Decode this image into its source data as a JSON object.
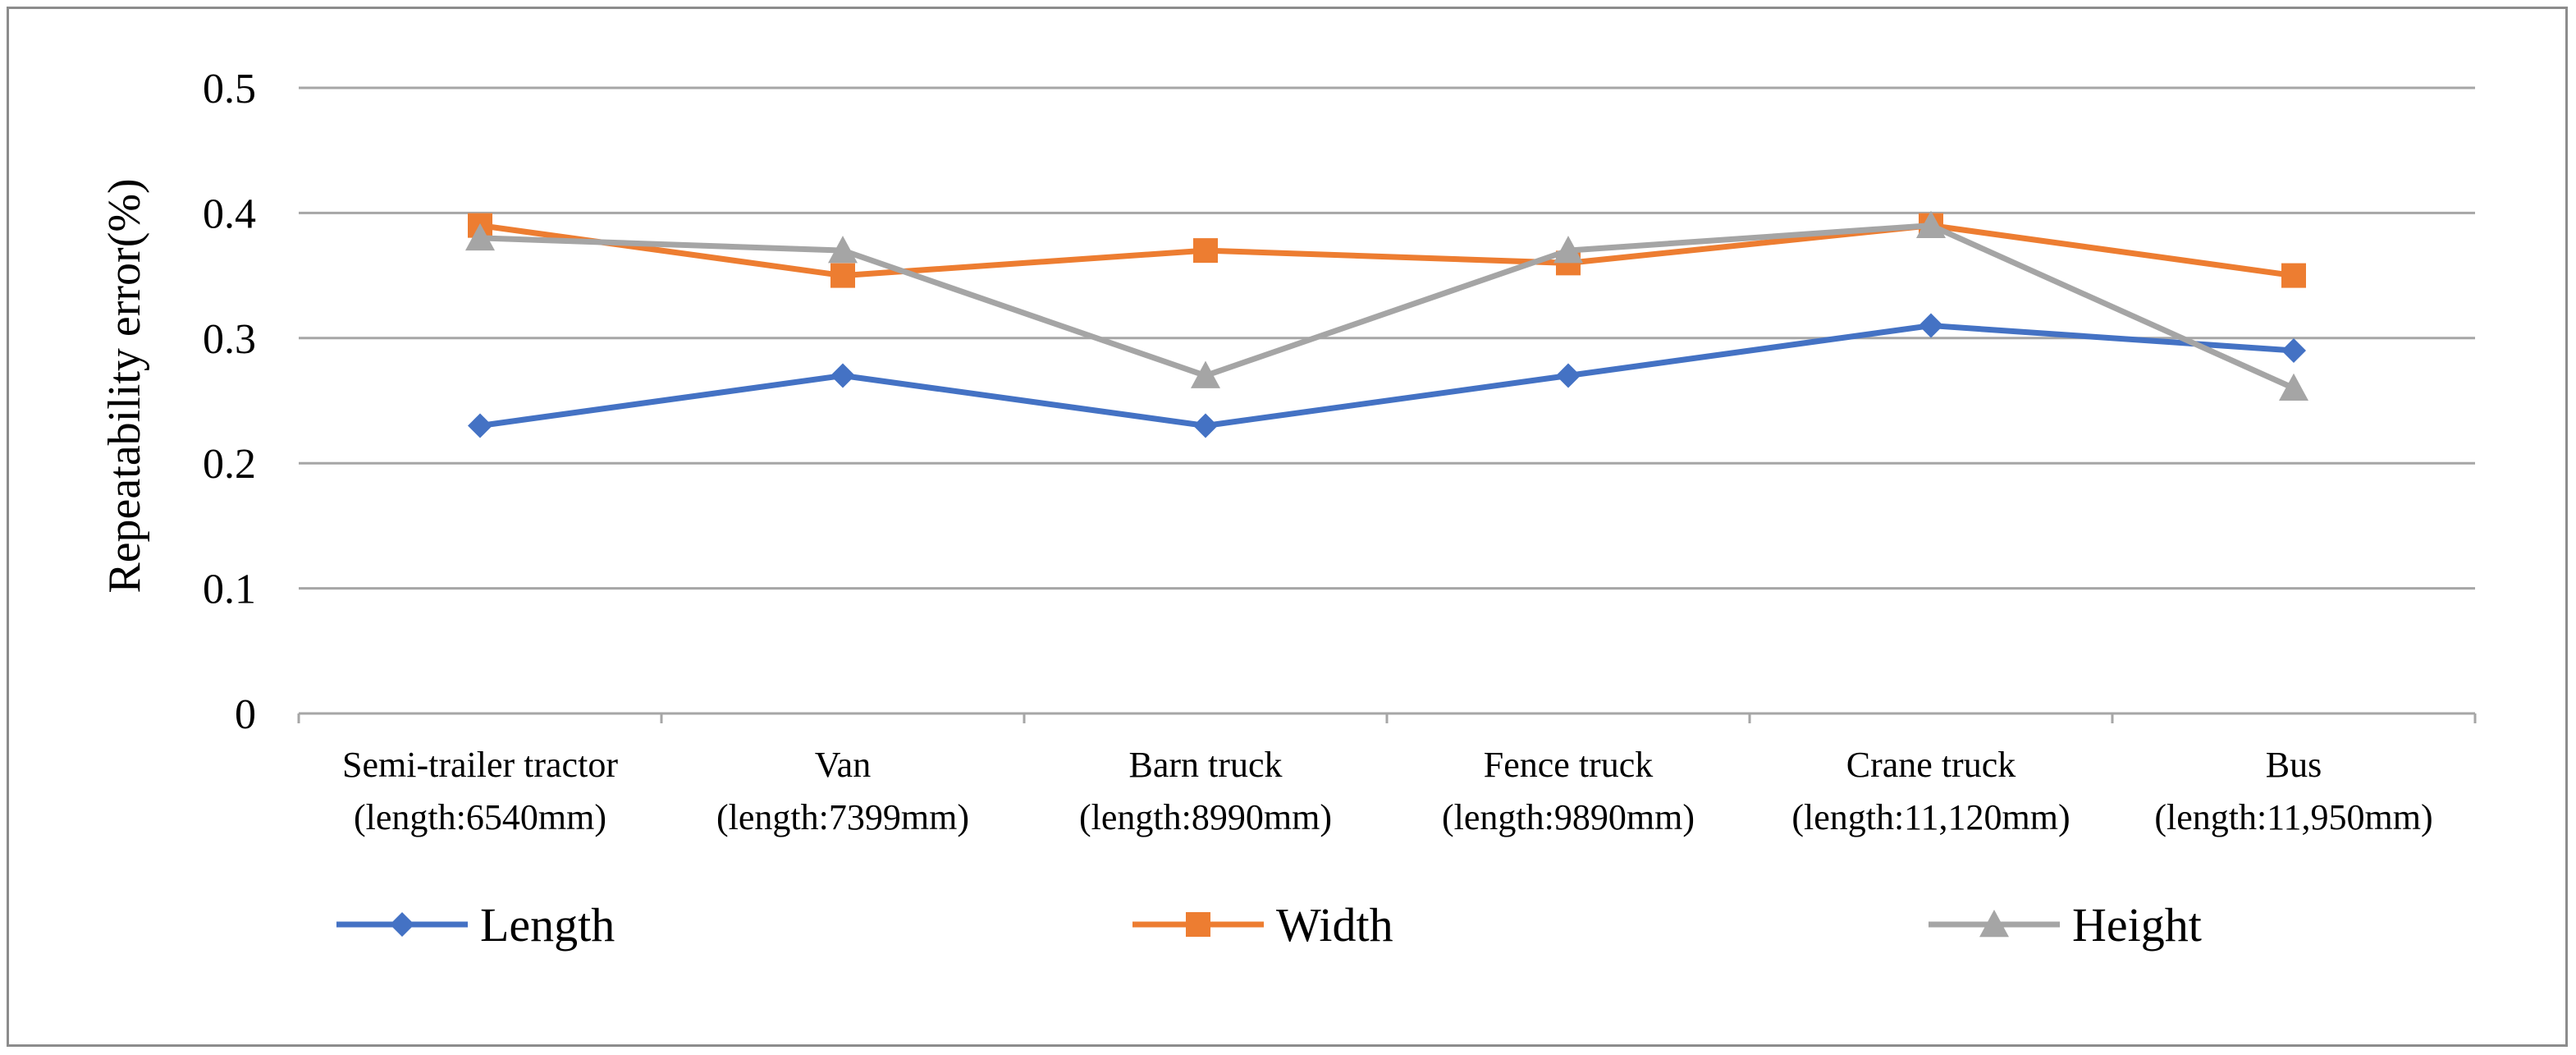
{
  "chart_data": {
    "type": "line",
    "title": "",
    "ylabel": "Repeatability error(%)",
    "xlabel": "",
    "ylim": [
      0,
      0.5
    ],
    "yticks": [
      0,
      0.1,
      0.2,
      0.3,
      0.4,
      0.5
    ],
    "ytick_labels": [
      "0",
      "0.1",
      "0.2",
      "0.3",
      "0.4",
      "0.5"
    ],
    "grid": true,
    "legend_position": "bottom",
    "categories": [
      [
        "Semi-trailer tractor",
        "(length:6540mm)"
      ],
      [
        "Van",
        "(length:7399mm)"
      ],
      [
        "Barn truck",
        "(length:8990mm)"
      ],
      [
        "Fence truck",
        "(length:9890mm)"
      ],
      [
        "Crane truck",
        "(length:11,120mm)"
      ],
      [
        "Bus",
        "(length:11,950mm)"
      ]
    ],
    "series": [
      {
        "name": "Length",
        "color": "#4472C4",
        "marker": "diamond",
        "values": [
          0.23,
          0.27,
          0.23,
          0.27,
          0.31,
          0.29
        ]
      },
      {
        "name": "Width",
        "color": "#ED7D31",
        "marker": "square",
        "values": [
          0.39,
          0.35,
          0.37,
          0.36,
          0.39,
          0.35
        ]
      },
      {
        "name": "Height",
        "color": "#A5A5A5",
        "marker": "triangle",
        "values": [
          0.38,
          0.37,
          0.27,
          0.37,
          0.39,
          0.26
        ]
      }
    ]
  }
}
